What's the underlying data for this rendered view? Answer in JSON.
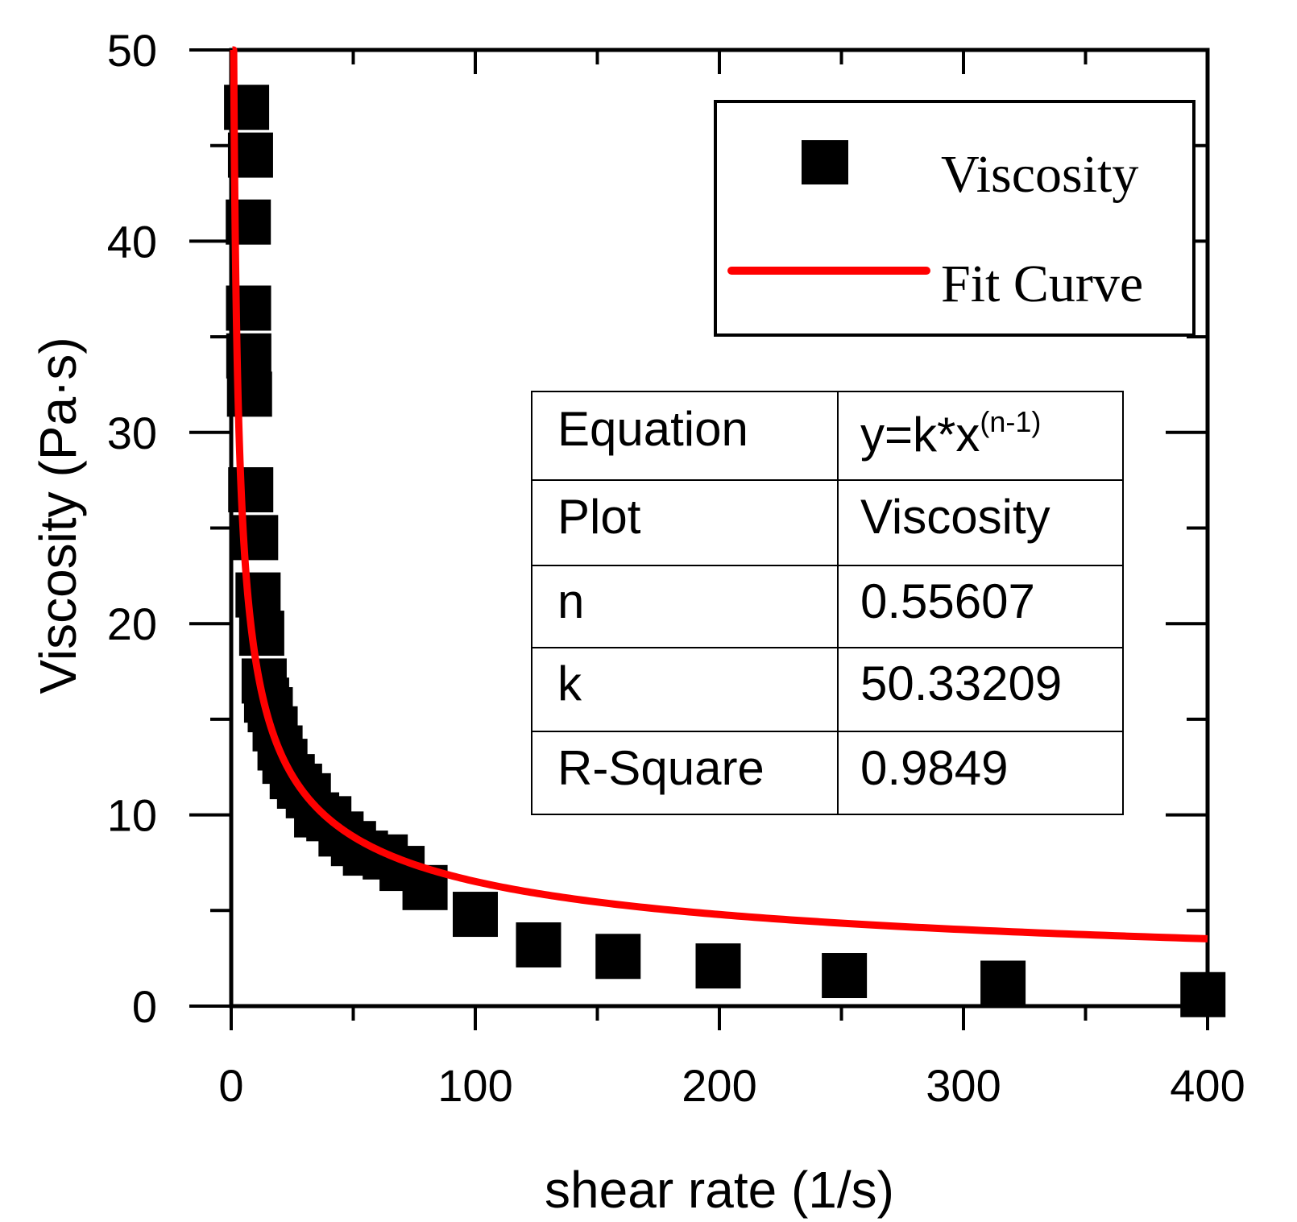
{
  "chart_data": {
    "type": "scatter",
    "title": "",
    "xlabel": "shear rate (1/s)",
    "ylabel": "Viscosity (Pa·s)",
    "xlim": [
      0,
      400
    ],
    "ylim": [
      0,
      50
    ],
    "x_ticks": [
      0,
      100,
      200,
      300,
      400
    ],
    "y_ticks": [
      0,
      10,
      20,
      30,
      40,
      50
    ],
    "grid": false,
    "legend_position": "top-right",
    "series": [
      {
        "name": "Viscosity",
        "kind": "markers",
        "color": "#000000",
        "x": [
          6.3,
          7.9,
          7.0,
          7.1,
          7.2,
          7.5,
          8.0,
          10.0,
          11.0,
          12.5,
          13.5,
          14.5,
          16.0,
          18.0,
          20.0,
          22.0,
          25.0,
          28.0,
          31.6,
          35.0,
          40.0,
          45.0,
          50.1,
          55.0,
          63.1,
          70.0,
          79.4,
          100.0,
          125.9,
          158.5,
          199.5,
          251.2,
          316.2,
          398.1
        ],
        "y": [
          47.0,
          44.5,
          41.0,
          36.5,
          34.0,
          32.0,
          27.0,
          24.5,
          21.5,
          19.5,
          17.0,
          16.0,
          15.5,
          14.5,
          13.5,
          12.8,
          12.0,
          11.5,
          11.0,
          10.0,
          9.8,
          9.0,
          8.5,
          8.0,
          7.8,
          7.2,
          6.2,
          4.8,
          3.2,
          2.6,
          2.1,
          1.6,
          1.2,
          0.6
        ]
      },
      {
        "name": "Fit Curve",
        "kind": "line",
        "color": "#ff0000",
        "equation": "y=k*x^(n-1)",
        "k": 50.33209,
        "n": 0.55607,
        "x_range": [
          0.5,
          400
        ]
      }
    ],
    "legend": [
      "Viscosity",
      "Fit Curve"
    ],
    "stats_table": {
      "rows": [
        {
          "label": "Equation",
          "value_base": "y=k*x",
          "value_sup": "(n-1)"
        },
        {
          "label": "Plot",
          "value": "Viscosity"
        },
        {
          "label": "n",
          "value": "0.55607"
        },
        {
          "label": "k",
          "value": "50.33209"
        },
        {
          "label": "R-Square",
          "value": "0.9849"
        }
      ]
    }
  }
}
